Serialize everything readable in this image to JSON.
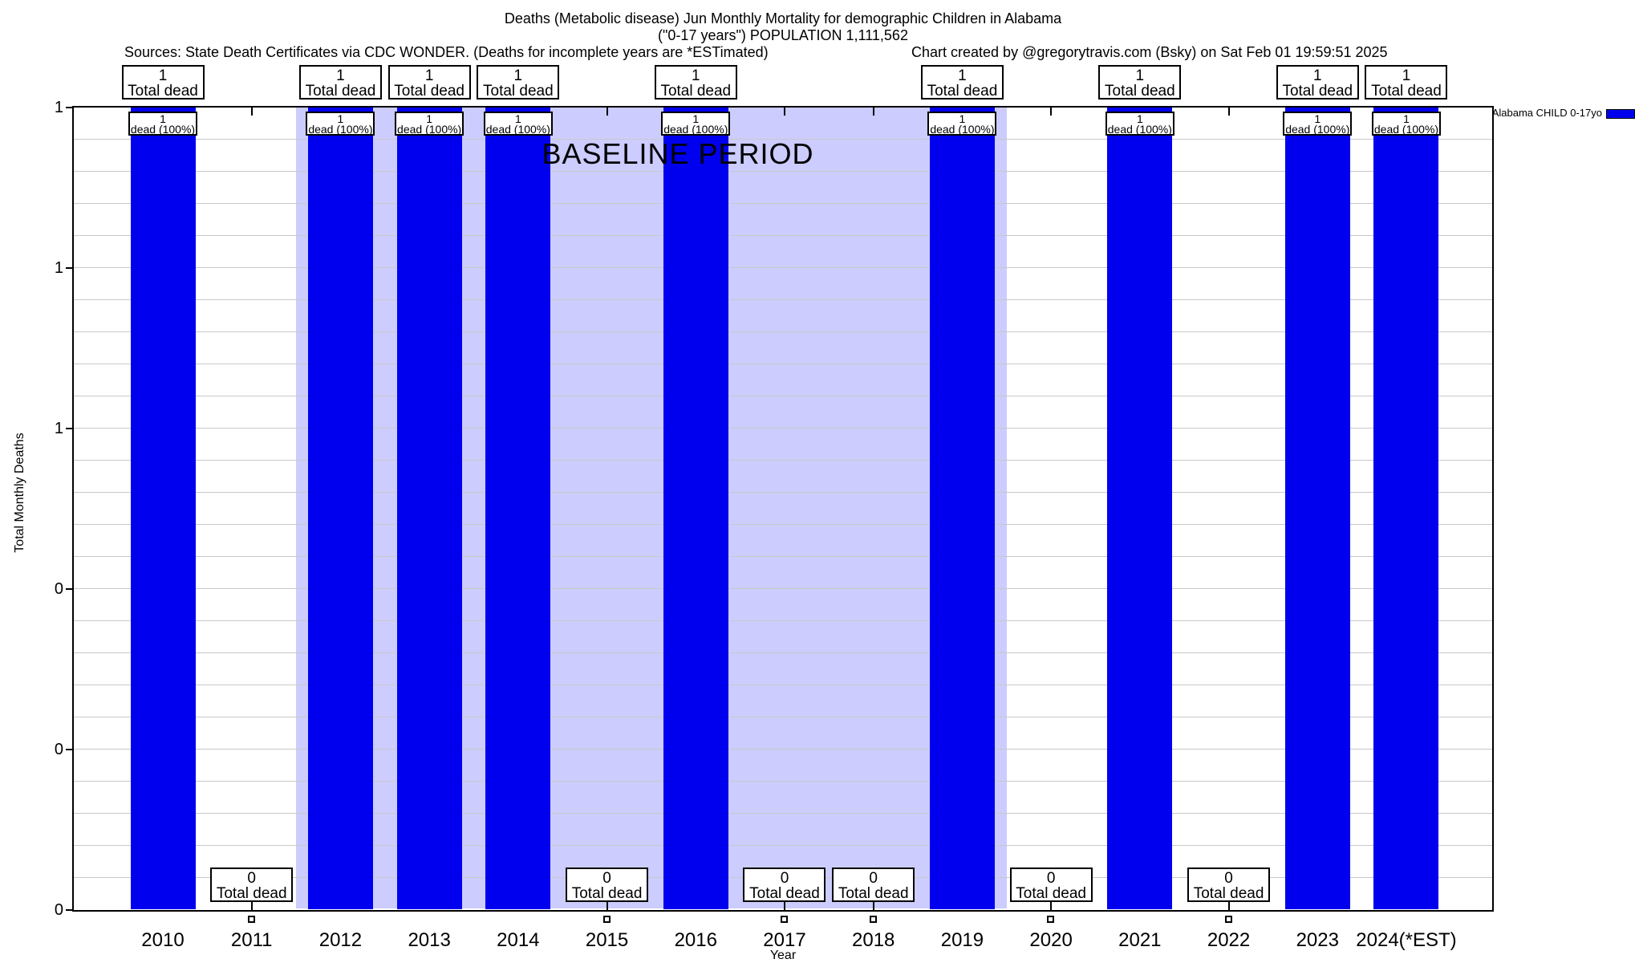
{
  "header": {
    "title_line1": "Deaths (Metabolic disease) Jun Monthly Mortality for demographic Children in Alabama",
    "title_line2": "(\"0-17 years\") POPULATION 1,111,562",
    "sources": "Sources: State Death Certificates via CDC WONDER. (Deaths for incomplete years are *ESTimated)",
    "credit": "Chart created by @gregorytravis.com (Bsky) on Sat Feb 01 19:59:51 2025"
  },
  "legend": {
    "series_label": "Alabama CHILD 0-17yo",
    "swatch_color": "#0000EE",
    "position": "top-right-outside"
  },
  "chart_data": {
    "type": "bar",
    "title": "Deaths (Metabolic disease) Jun Monthly Mortality for demographic Children in Alabama (\"0-17 years\") POPULATION 1,111,562",
    "xlabel": "Year",
    "ylabel": "Total Monthly Deaths",
    "categories": [
      "2010",
      "2011",
      "2012",
      "2013",
      "2014",
      "2015",
      "2016",
      "2017",
      "2018",
      "2019",
      "2020",
      "2021",
      "2022",
      "2023",
      "2024(*EST)"
    ],
    "series": [
      {
        "name": "Alabama CHILD 0-17yo",
        "values": [
          1,
          0,
          1,
          1,
          1,
          0,
          1,
          0,
          0,
          1,
          0,
          1,
          0,
          1,
          1
        ]
      }
    ],
    "ylim": [
      0,
      1
    ],
    "y_tick_labels_top_to_bottom": [
      "1",
      "1",
      "1",
      "0",
      "0",
      "0"
    ],
    "grid": true,
    "legend_position": "top-right-outside",
    "baseline_region": {
      "label": "BASELINE PERIOD",
      "from_category": "2012",
      "to_category": "2019"
    },
    "annotations": {
      "nonzero_outer_box": {
        "line1": "1",
        "line2": "Total dead"
      },
      "nonzero_inner_box": {
        "line1": "1",
        "line2": "dead (100%)"
      },
      "zero_outer_box": {
        "line1": "0",
        "line2": "Total dead"
      }
    },
    "colors": {
      "bar": "#0000EE",
      "baseline_fill": "#CCCCFF",
      "grid": "#C9C9C9",
      "axis": "#000000"
    }
  }
}
